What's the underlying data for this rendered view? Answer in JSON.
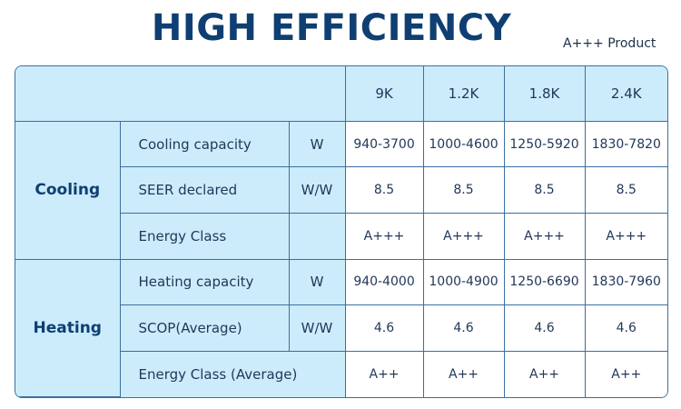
{
  "title": "HIGH EFFICIENCY",
  "subtitle": "A+++ Product",
  "table": {
    "models": [
      "9K",
      "1.2K",
      "1.8K",
      "2.4K"
    ],
    "groups": [
      {
        "name": "Cooling",
        "rows": [
          {
            "param": "Cooling capacity",
            "unit": "W",
            "values": [
              "940-3700",
              "1000-4600",
              "1250-5920",
              "1830-7820"
            ]
          },
          {
            "param": "SEER declared",
            "unit": "W/W",
            "values": [
              "8.5",
              "8.5",
              "8.5",
              "8.5"
            ]
          },
          {
            "param": "Energy Class",
            "unit": "",
            "values": [
              "A+++",
              "A+++",
              "A+++",
              "A+++"
            ]
          }
        ]
      },
      {
        "name": "Heating",
        "rows": [
          {
            "param": "Heating capacity",
            "unit": "W",
            "values": [
              "940-4000",
              "1000-4900",
              "1250-6690",
              "1830-7960"
            ]
          },
          {
            "param": "SCOP(Average)",
            "unit": "W/W",
            "values": [
              "4.6",
              "4.6",
              "4.6",
              "4.6"
            ]
          },
          {
            "param": "Energy Class (Average)",
            "unit": "",
            "values": [
              "A++",
              "A++",
              "A++",
              "A++"
            ]
          }
        ]
      }
    ]
  },
  "colors": {
    "title": "#0f3f72",
    "header_bg": "#ccecfb",
    "value_bg": "#ffffff",
    "border": "#3b6f9f"
  }
}
